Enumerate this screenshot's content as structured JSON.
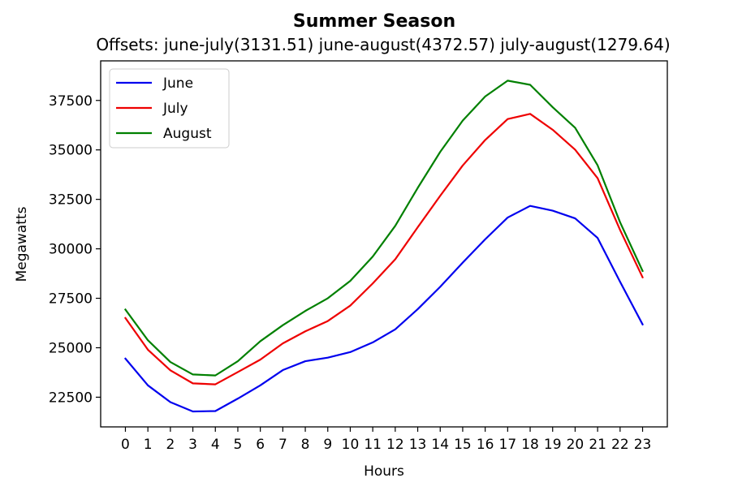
{
  "chart_data": {
    "type": "line",
    "title": "Summer Season",
    "subtitle": "Offsets: june-july(3131.51) june-august(4372.57) july-august(1279.64)",
    "xlabel": "Hours",
    "ylabel": "Megawatts",
    "x": [
      0,
      1,
      2,
      3,
      4,
      5,
      6,
      7,
      8,
      9,
      10,
      11,
      12,
      13,
      14,
      15,
      16,
      17,
      18,
      19,
      20,
      21,
      22,
      23
    ],
    "x_tick_labels": [
      "0",
      "1",
      "2",
      "3",
      "4",
      "5",
      "6",
      "7",
      "8",
      "9",
      "10",
      "11",
      "12",
      "13",
      "14",
      "15",
      "16",
      "17",
      "18",
      "19",
      "20",
      "21",
      "22",
      "23"
    ],
    "y_ticks": [
      22500,
      25000,
      27500,
      30000,
      32500,
      35000,
      37500
    ],
    "y_tick_labels": [
      "22500",
      "25000",
      "27500",
      "30000",
      "32500",
      "35000",
      "37500"
    ],
    "ylim": [
      21000,
      39500
    ],
    "grid": false,
    "legend_position": "upper-left",
    "series": [
      {
        "name": "June",
        "color": "#0000ee",
        "values": [
          24450,
          23100,
          22250,
          21780,
          21800,
          22430,
          23100,
          23870,
          24320,
          24500,
          24780,
          25270,
          25930,
          26950,
          28080,
          29300,
          30480,
          31580,
          32170,
          31930,
          31540,
          30550,
          28330,
          26180
        ]
      },
      {
        "name": "July",
        "color": "#ee0000",
        "values": [
          26500,
          24900,
          23860,
          23200,
          23150,
          23770,
          24400,
          25220,
          25830,
          26350,
          27130,
          28250,
          29470,
          31090,
          32680,
          34210,
          35500,
          36560,
          36820,
          36020,
          35010,
          33570,
          30950,
          28560
        ]
      },
      {
        "name": "August",
        "color": "#008000",
        "values": [
          26930,
          25380,
          24280,
          23650,
          23600,
          24320,
          25330,
          26140,
          26860,
          27500,
          28380,
          29610,
          31160,
          33080,
          34900,
          36480,
          37700,
          38500,
          38290,
          37160,
          36120,
          34220,
          31340,
          28880
        ]
      }
    ]
  }
}
